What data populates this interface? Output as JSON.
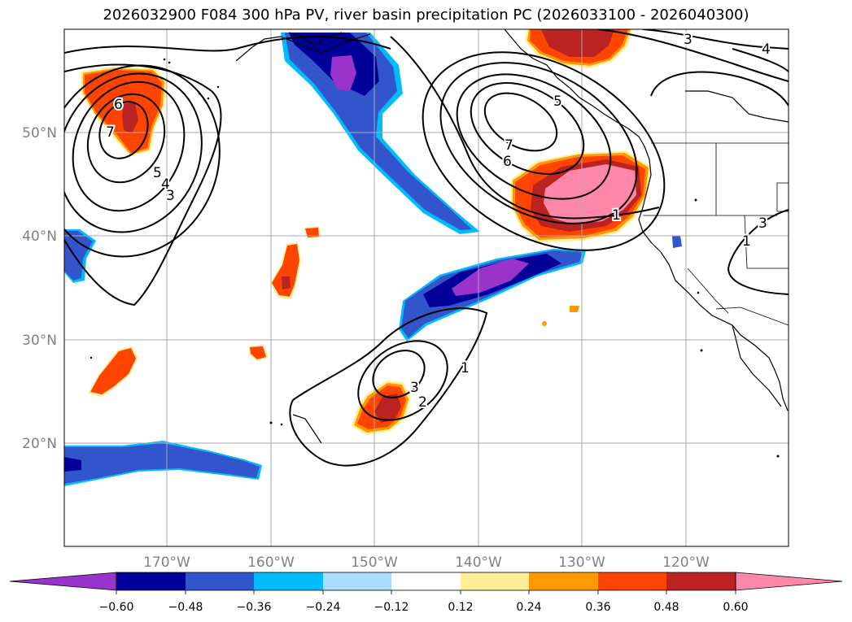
{
  "title": "2026032900 F084 300 hPa PV, river basin precipitation PC (2026033100 - 2026040300)",
  "map": {
    "lat_labels": [
      "50°N",
      "40°N",
      "30°N",
      "20°N"
    ],
    "lon_labels": [
      "170°W",
      "160°W",
      "150°W",
      "140°W",
      "130°W",
      "120°W"
    ],
    "contour_labels": [
      "6",
      "7",
      "5",
      "4",
      "3",
      "7",
      "6",
      "5",
      "3",
      "1",
      "3",
      "4",
      "1",
      "1",
      "2",
      "3"
    ]
  },
  "colorbar": {
    "colors": [
      "#9933cc",
      "#000099",
      "#3355cc",
      "#00bbff",
      "#aaddff",
      "#ffffff",
      "#ffee99",
      "#ff9900",
      "#ff4400",
      "#bb2222",
      "#ff88aa"
    ],
    "ticks": [
      "−0.60",
      "−0.48",
      "−0.36",
      "−0.24",
      "−0.12",
      "0.12",
      "0.24",
      "0.36",
      "0.48",
      "0.60"
    ]
  }
}
